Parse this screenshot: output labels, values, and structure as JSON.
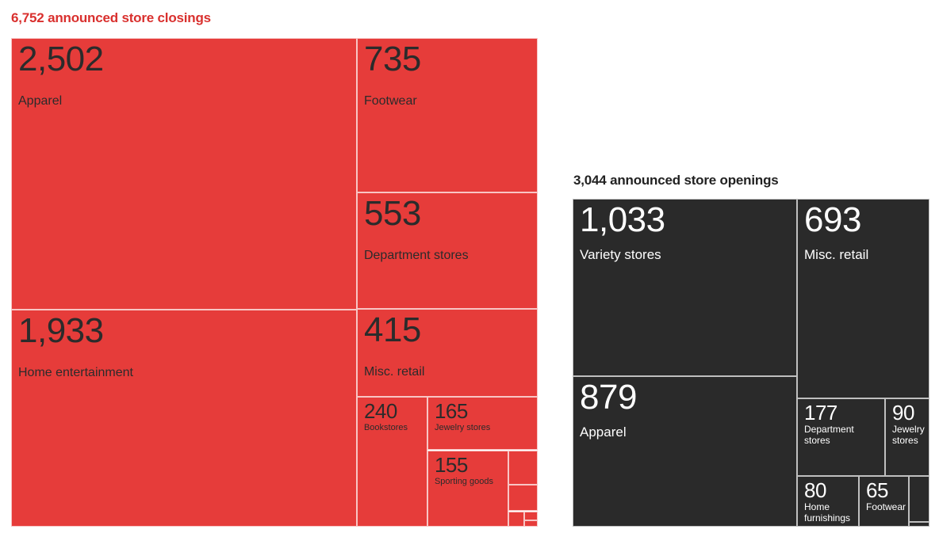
{
  "colors": {
    "closings_fill": "#e63c3a",
    "closings_title": "#d9302e",
    "openings_fill": "#2a2a2a",
    "openings_title": "#222222"
  },
  "closings": {
    "title": "6,752 announced store closings"
  },
  "openings": {
    "title": "3,044 announced store openings"
  },
  "chart_data": [
    {
      "type": "treemap",
      "title": "6,752 announced store closings",
      "total": 6752,
      "items": [
        {
          "value": 2502,
          "value_label": "2,502",
          "label": "Apparel"
        },
        {
          "value": 1933,
          "value_label": "1,933",
          "label": "Home entertainment"
        },
        {
          "value": 735,
          "value_label": "735",
          "label": "Footwear"
        },
        {
          "value": 553,
          "value_label": "553",
          "label": "Department stores"
        },
        {
          "value": 415,
          "value_label": "415",
          "label": "Misc. retail"
        },
        {
          "value": 240,
          "value_label": "240",
          "label": "Bookstores"
        },
        {
          "value": 165,
          "value_label": "165",
          "label": "Jewelry stores"
        },
        {
          "value": 155,
          "value_label": "155",
          "label": "Sporting goods"
        },
        {
          "value": 22,
          "value_label": "",
          "label": ""
        },
        {
          "value": 16,
          "value_label": "",
          "label": ""
        },
        {
          "value": 8,
          "value_label": "",
          "label": ""
        },
        {
          "value": 5,
          "value_label": "",
          "label": ""
        },
        {
          "value": 3,
          "value_label": "",
          "label": ""
        }
      ]
    },
    {
      "type": "treemap",
      "title": "3,044 announced store openings",
      "total": 3044,
      "items": [
        {
          "value": 1033,
          "value_label": "1,033",
          "label": "Variety stores"
        },
        {
          "value": 879,
          "value_label": "879",
          "label": "Apparel"
        },
        {
          "value": 693,
          "value_label": "693",
          "label": "Misc. retail"
        },
        {
          "value": 177,
          "value_label": "177",
          "label": "Department stores"
        },
        {
          "value": 90,
          "value_label": "90",
          "label": "Jewelry stores"
        },
        {
          "value": 80,
          "value_label": "80",
          "label": "Home furnishings"
        },
        {
          "value": 65,
          "value_label": "65",
          "label": "Footwear"
        },
        {
          "value": 20,
          "value_label": "",
          "label": ""
        },
        {
          "value": 7,
          "value_label": "",
          "label": ""
        }
      ]
    }
  ]
}
